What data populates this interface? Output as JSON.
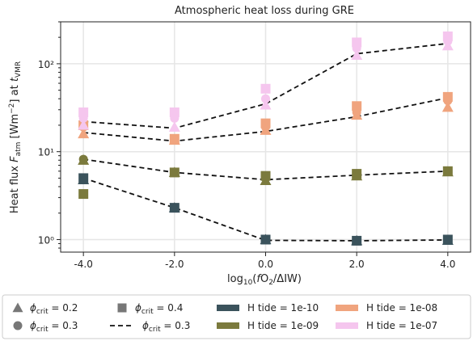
{
  "chart_data": {
    "type": "scatter",
    "title": "Atmospheric heat loss during GRE",
    "xlabel": "log₁₀(fO₂/ΔIW)",
    "ylabel": "Heat flux F_atm [Wm⁻²] at t_VMR",
    "xlim": [
      -4.5,
      4.5
    ],
    "ylim": [
      0.72,
      300
    ],
    "yscale": "log",
    "grid": true,
    "x_ticks": [
      "-4.0",
      "-2.0",
      "0.0",
      "2.0",
      "4.0"
    ],
    "y_ticks": [
      "10⁰",
      "10¹",
      "10²"
    ],
    "x": [
      -4,
      -2,
      0,
      2,
      4
    ],
    "series": [
      {
        "name": "H tide = 1e-10",
        "color": "#3b535c",
        "phi_0_2": [
          4.8,
          2.3,
          1.0,
          0.97,
          0.98
        ],
        "phi_0_3": [
          5.0,
          2.3,
          1.0,
          0.97,
          1.0
        ],
        "phi_0_4": [
          5.0,
          2.3,
          1.0,
          0.97,
          1.0
        ],
        "line_phi_0_3": [
          5.0,
          2.3,
          0.98,
          0.97,
          0.99
        ]
      },
      {
        "name": "H tide = 1e-09",
        "color": "#7b7a3d",
        "phi_0_2": [
          8.0,
          5.8,
          4.7,
          5.3,
          5.9
        ],
        "phi_0_3": [
          8.2,
          5.8,
          5.0,
          5.5,
          6.0
        ],
        "phi_0_4": [
          3.3,
          5.8,
          5.3,
          5.6,
          6.0
        ],
        "line_phi_0_3": [
          8.2,
          5.8,
          4.8,
          5.4,
          6.0
        ]
      },
      {
        "name": "H tide = 1e-08",
        "color": "#f0a47e",
        "phi_0_2": [
          16.0,
          13.5,
          17.5,
          26.0,
          32.0
        ],
        "phi_0_3": [
          19.0,
          14.0,
          19.0,
          28.0,
          38.0
        ],
        "phi_0_4": [
          20.0,
          14.0,
          21.0,
          33.0,
          42.0
        ],
        "line_phi_0_3": [
          16.5,
          13.2,
          17.0,
          25.0,
          41.0
        ]
      },
      {
        "name": "H tide = 1e-07",
        "color": "#f5c6ee",
        "phi_0_2": [
          20.0,
          19.0,
          34.0,
          125.0,
          160.0
        ],
        "phi_0_3": [
          24.0,
          24.0,
          40.0,
          150.0,
          180.0
        ],
        "phi_0_4": [
          28.0,
          28.0,
          52.0,
          175.0,
          205.0
        ],
        "line_phi_0_3": [
          22.0,
          18.5,
          35.0,
          130.0,
          170.0
        ]
      }
    ],
    "legend": {
      "placement": "bottom",
      "marker_entries": [
        {
          "label": "ϕcrit = 0.2",
          "marker": "triangle"
        },
        {
          "label": "ϕcrit = 0.3",
          "marker": "circle"
        },
        {
          "label": "ϕcrit = 0.4",
          "marker": "square"
        },
        {
          "label": "ϕcrit = 0.3",
          "marker": "dashed-line"
        }
      ],
      "color_entries": [
        {
          "label": "H tide = 1e-10",
          "color": "#3b535c"
        },
        {
          "label": "H tide = 1e-09",
          "color": "#7b7a3d"
        },
        {
          "label": "H tide = 1e-08",
          "color": "#f0a47e"
        },
        {
          "label": "H tide = 1e-07",
          "color": "#f5c6ee"
        }
      ]
    }
  }
}
